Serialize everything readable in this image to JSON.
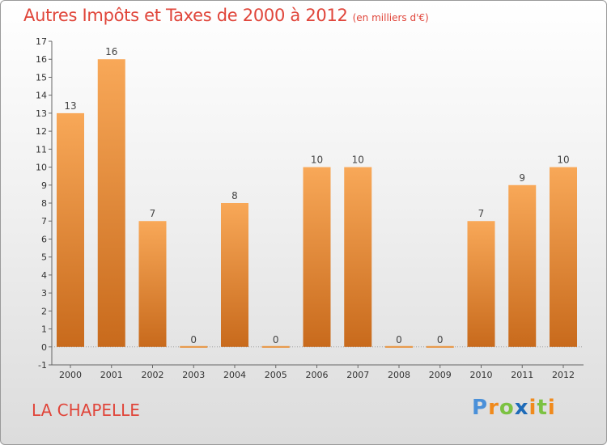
{
  "title": {
    "main": "Autres Impôts et Taxes de 2000 à 2012",
    "unit": "(en milliers d'€)"
  },
  "commune": "LA CHAPELLE",
  "logo": {
    "text": "Proxiti",
    "letters": [
      "P",
      "r",
      "o",
      "x",
      "i",
      "t",
      "i"
    ],
    "colors": [
      "#4a90d9",
      "#f08a1c",
      "#7cc242",
      "#1e6bb8",
      "#f08a1c",
      "#7cc242",
      "#f08a1c"
    ]
  },
  "colors": {
    "title": "#e0453a",
    "bar_light": "#f8a858",
    "bar_dark": "#c86a1c",
    "zero_bar": "#e8913a"
  },
  "chart_data": {
    "type": "bar",
    "title": "Autres Impôts et Taxes de 2000 à 2012",
    "subtitle": "(en milliers d'€)",
    "categories": [
      "2000",
      "2001",
      "2002",
      "2003",
      "2004",
      "2005",
      "2006",
      "2007",
      "2008",
      "2009",
      "2010",
      "2011",
      "2012"
    ],
    "values": [
      13,
      16,
      7,
      0,
      8,
      0,
      10,
      10,
      0,
      0,
      7,
      9,
      10
    ],
    "ylim": [
      -1,
      17
    ],
    "yticks": [
      "-1",
      "0",
      "1",
      "2",
      "3",
      "4",
      "5",
      "6",
      "7",
      "8",
      "9",
      "10",
      "11",
      "12",
      "13",
      "14",
      "15",
      "16",
      "17"
    ],
    "grid": false
  }
}
